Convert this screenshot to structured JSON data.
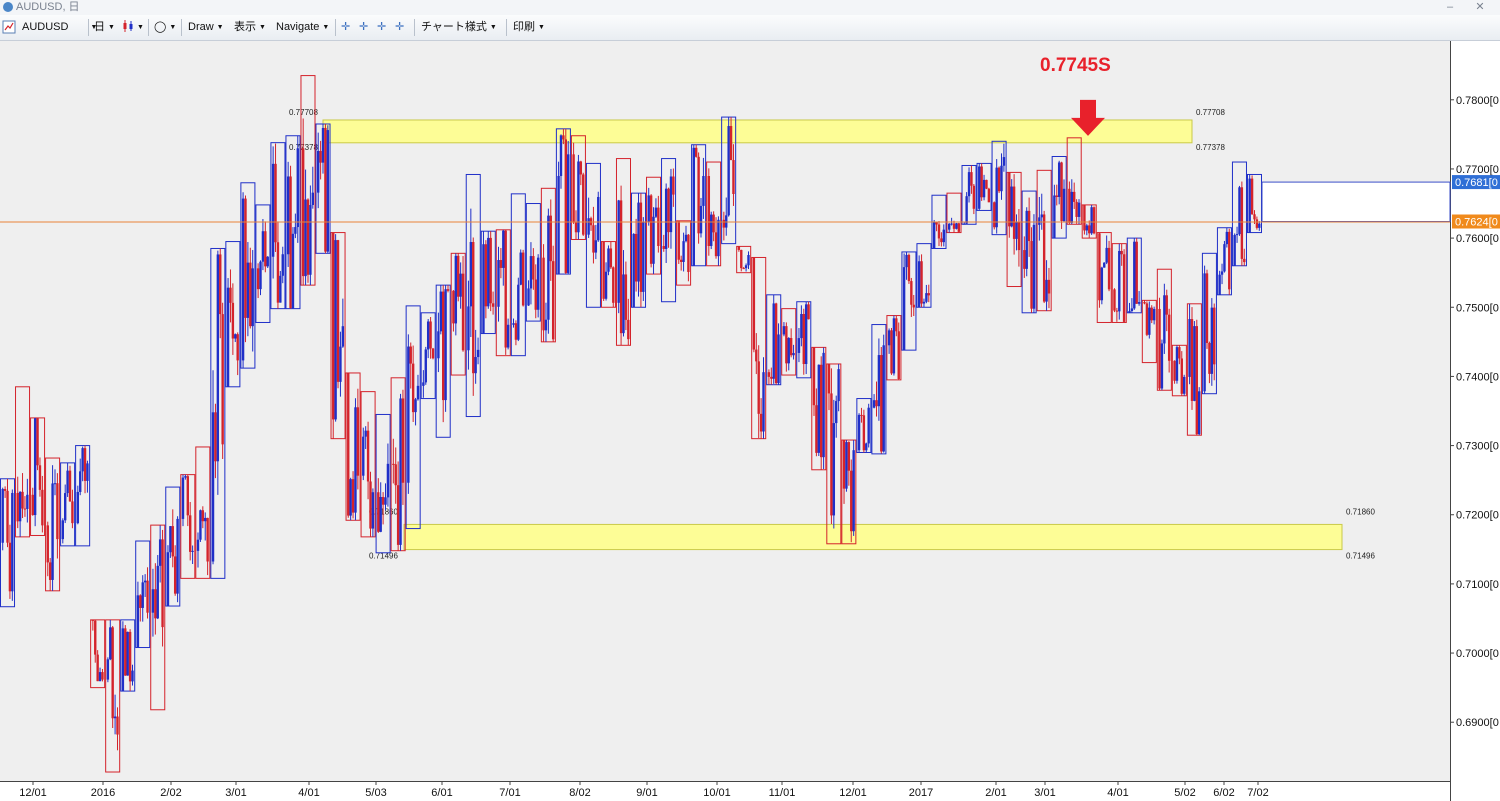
{
  "window": {
    "title": "AUDUSD, 日",
    "minimize": "‒",
    "close": "✕"
  },
  "toolbar": {
    "symbol": "AUDUSD",
    "timeframe": "日",
    "draw": "Draw",
    "view": "表示",
    "navigate": "Navigate",
    "chart_style": "チャート様式",
    "print": "印刷"
  },
  "annotation": {
    "label": "0.7745S",
    "color": "#e8212b"
  },
  "colors": {
    "bull": "#1f2fc8",
    "bear": "#d4232b",
    "zone": "#fdfd96",
    "horizontal_line": "#e8833a",
    "chart_bg": "#efefef"
  },
  "chart_data": {
    "type": "candlestick",
    "symbol": "AUDUSD",
    "timeframe": "daily",
    "y_ticks": [
      "0.7800[0",
      "0.7700[0",
      "0.7600[0",
      "0.7500[0",
      "0.7400[0",
      "0.7300[0",
      "0.7200[0",
      "0.7100[0",
      "0.7000[0",
      "0.6900[0"
    ],
    "y_tick_values": [
      0.78,
      0.77,
      0.76,
      0.75,
      0.74,
      0.73,
      0.72,
      0.71,
      0.7,
      0.69
    ],
    "x_ticks": [
      "12/01",
      "2016",
      "2/02",
      "3/01",
      "4/01",
      "5/03",
      "6/01",
      "7/01",
      "8/02",
      "9/01",
      "10/01",
      "11/01",
      "12/01",
      "2017",
      "2/01",
      "3/01",
      "4/01",
      "5/02",
      "6/02",
      "7/02"
    ],
    "ylim": [
      0.6815,
      0.7885
    ],
    "price_labels": [
      {
        "text": "0.7681[0",
        "value": 0.7681,
        "style": "blue"
      },
      {
        "text": "0.7624[0",
        "value": 0.7624,
        "style": "orange"
      }
    ],
    "zones": [
      {
        "name": "resistance",
        "top": 0.77708,
        "bottom": 0.77378,
        "top_label": "0.77708",
        "bottom_label": "0.77378"
      },
      {
        "name": "support",
        "top": 0.7186,
        "bottom": 0.71496,
        "top_label": "0.71860",
        "bottom_label": "0.71496"
      }
    ],
    "horizontal_line": 0.7624,
    "weekly_ranges": [
      [
        0.7252,
        0.7067
      ],
      [
        0.7385,
        0.7168
      ],
      [
        0.734,
        0.717
      ],
      [
        0.7282,
        0.709
      ],
      [
        0.7275,
        0.7155
      ],
      [
        0.73,
        0.7155
      ],
      [
        0.7048,
        0.695
      ],
      [
        0.7048,
        0.6828
      ],
      [
        0.7048,
        0.6945
      ],
      [
        0.7162,
        0.7008
      ],
      [
        0.7185,
        0.6918
      ],
      [
        0.724,
        0.7068
      ],
      [
        0.7258,
        0.7108
      ],
      [
        0.7298,
        0.7108
      ],
      [
        0.7585,
        0.7108
      ],
      [
        0.7595,
        0.7385
      ],
      [
        0.768,
        0.7412
      ],
      [
        0.7648,
        0.7478
      ],
      [
        0.7738,
        0.7498
      ],
      [
        0.7748,
        0.7498
      ],
      [
        0.7835,
        0.7532
      ],
      [
        0.7765,
        0.7578
      ],
      [
        0.7608,
        0.731
      ],
      [
        0.7405,
        0.7192
      ],
      [
        0.7378,
        0.7168
      ],
      [
        0.7345,
        0.7145
      ],
      [
        0.7398,
        0.7148
      ],
      [
        0.7502,
        0.718
      ],
      [
        0.7492,
        0.7368
      ],
      [
        0.7532,
        0.7312
      ],
      [
        0.7578,
        0.7402
      ],
      [
        0.7692,
        0.7342
      ],
      [
        0.761,
        0.7462
      ],
      [
        0.7612,
        0.743
      ],
      [
        0.7664,
        0.743
      ],
      [
        0.765,
        0.748
      ],
      [
        0.7672,
        0.745
      ],
      [
        0.7758,
        0.7548
      ],
      [
        0.7748,
        0.7598
      ],
      [
        0.7708,
        0.75
      ],
      [
        0.7595,
        0.75
      ],
      [
        0.7715,
        0.7445
      ],
      [
        0.7665,
        0.75
      ],
      [
        0.7688,
        0.7548
      ],
      [
        0.7715,
        0.7508
      ],
      [
        0.7625,
        0.7532
      ],
      [
        0.7735,
        0.756
      ],
      [
        0.771,
        0.756
      ],
      [
        0.7775,
        0.7592
      ],
      [
        0.7588,
        0.755
      ],
      [
        0.7572,
        0.731
      ],
      [
        0.7518,
        0.7388
      ],
      [
        0.7498,
        0.7402
      ],
      [
        0.7508,
        0.7398
      ],
      [
        0.7442,
        0.7265
      ],
      [
        0.7418,
        0.7158
      ],
      [
        0.7308,
        0.7158
      ],
      [
        0.7368,
        0.729
      ],
      [
        0.7475,
        0.7288
      ],
      [
        0.7488,
        0.7395
      ],
      [
        0.758,
        0.7438
      ],
      [
        0.7592,
        0.75
      ],
      [
        0.7662,
        0.7585
      ],
      [
        0.7665,
        0.7608
      ],
      [
        0.7705,
        0.762
      ],
      [
        0.7708,
        0.764
      ],
      [
        0.774,
        0.7605
      ],
      [
        0.7695,
        0.753
      ],
      [
        0.7668,
        0.7492
      ],
      [
        0.7698,
        0.7495
      ],
      [
        0.7718,
        0.76
      ],
      [
        0.7745,
        0.762
      ],
      [
        0.7648,
        0.76
      ],
      [
        0.7608,
        0.7478
      ],
      [
        0.7592,
        0.7478
      ],
      [
        0.76,
        0.7492
      ],
      [
        0.751,
        0.742
      ],
      [
        0.7555,
        0.738
      ],
      [
        0.7445,
        0.7372
      ],
      [
        0.7505,
        0.7315
      ],
      [
        0.7578,
        0.7375
      ],
      [
        0.7615,
        0.7518
      ],
      [
        0.771,
        0.756
      ],
      [
        0.7692,
        0.7608
      ]
    ],
    "last_week_open": true
  }
}
